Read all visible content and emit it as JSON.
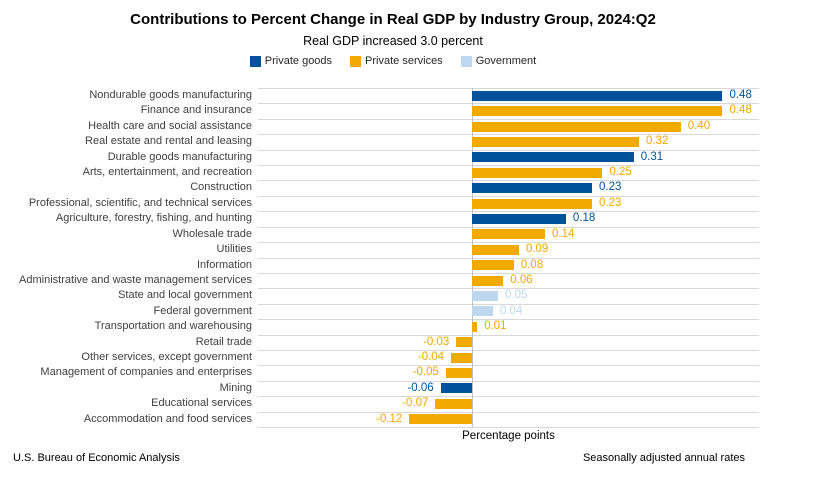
{
  "header": {
    "title": "Contributions to Percent Change in Real GDP by Industry Group, 2024:Q2",
    "subtitle": "Real GDP increased 3.0 percent"
  },
  "legend": [
    {
      "key": "goods",
      "label": "Private goods",
      "color": "#00529B"
    },
    {
      "key": "services",
      "label": "Private services",
      "color": "#F2A900"
    },
    {
      "key": "government",
      "label": "Government",
      "color": "#BDD7EE"
    }
  ],
  "chart_data": {
    "type": "bar",
    "orientation": "horizontal",
    "title": "Contributions to Percent Change in Real GDP by Industry Group, 2024:Q2",
    "subtitle": "Real GDP increased 3.0 percent",
    "xlabel": "Percentage points",
    "ylabel": "",
    "xlim": [
      -0.41,
      0.55
    ],
    "grid": "row-separators",
    "legend_position": "top",
    "categories": [
      "Nondurable goods manufacturing",
      "Finance and insurance",
      "Health care and social assistance",
      "Real estate and rental and leasing",
      "Durable goods manufacturing",
      "Arts, entertainment, and recreation",
      "Construction",
      "Professional, scientific, and technical services",
      "Agriculture, forestry, fishing, and hunting",
      "Wholesale trade",
      "Utilities",
      "Information",
      "Administrative and waste management services",
      "State and local government",
      "Federal government",
      "Transportation and warehousing",
      "Retail trade",
      "Other services, except government",
      "Management of companies and enterprises",
      "Mining",
      "Educational services",
      "Accommodation and food services"
    ],
    "values": [
      0.48,
      0.48,
      0.4,
      0.32,
      0.31,
      0.25,
      0.23,
      0.23,
      0.18,
      0.14,
      0.09,
      0.08,
      0.06,
      0.05,
      0.04,
      0.01,
      -0.03,
      -0.04,
      -0.05,
      -0.06,
      -0.07,
      -0.12
    ],
    "value_labels": [
      "0.48",
      "0.48",
      "0.40",
      "0.32",
      "0.31",
      "0.25",
      "0.23",
      "0.23",
      "0.18",
      "0.14",
      "0.09",
      "0.08",
      "0.06",
      "0.05",
      "0.04",
      "0.01",
      "-0.03",
      "-0.04",
      "-0.05",
      "-0.06",
      "-0.07",
      "-0.12"
    ],
    "groups": [
      "goods",
      "services",
      "services",
      "services",
      "goods",
      "services",
      "goods",
      "services",
      "goods",
      "services",
      "services",
      "services",
      "services",
      "government",
      "government",
      "services",
      "services",
      "services",
      "services",
      "goods",
      "services",
      "services"
    ],
    "colors": {
      "gridline": "#D9D9D9",
      "zero_axis": "#BFBFBF",
      "category_text": "#404040"
    }
  },
  "footer": {
    "left": "U.S. Bureau of Economic Analysis",
    "right": "Seasonally adjusted annual rates"
  }
}
